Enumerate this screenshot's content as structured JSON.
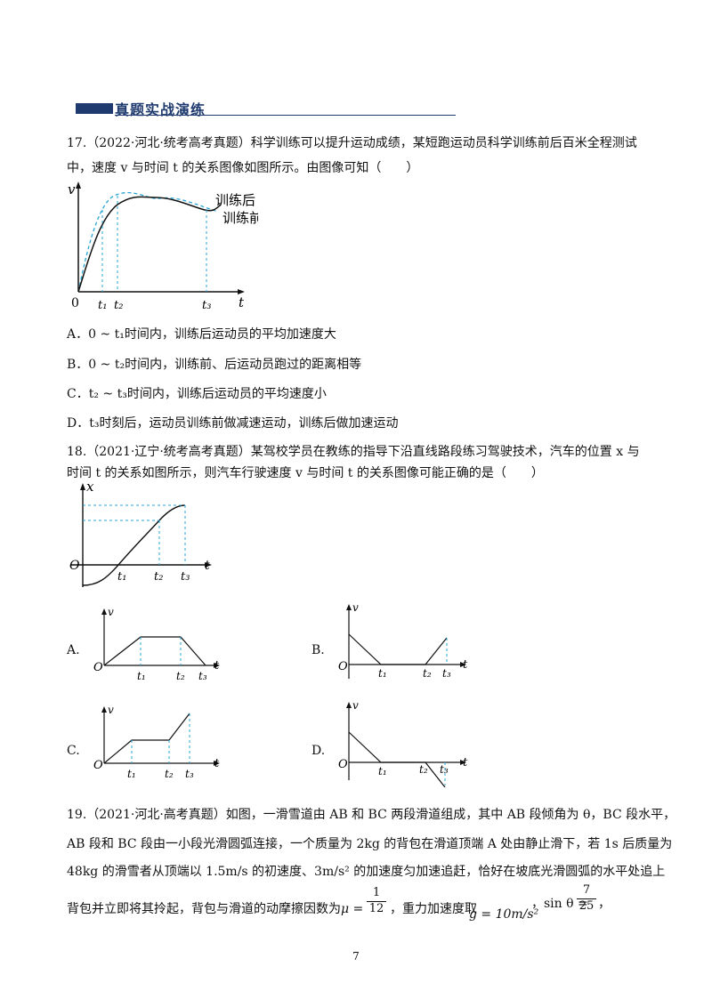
{
  "section": {
    "title": "真题实战演练"
  },
  "q17": {
    "line1": "17.（2022·河北·统考高考真题）科学训练可以提升运动成绩，某短跑运动员科学训练前后百米全程测试",
    "line2": "中，速度 v 与时间 t 的关系图像如图所示。由图像可知（　　）",
    "graph": {
      "y_axis": "v",
      "x_axis": "t",
      "origin": "0",
      "t1": "t₁",
      "t2": "t₂",
      "t3": "t₃",
      "curve_after": "训练后",
      "curve_before": "训练前"
    },
    "options": [
      "A．0 ~ t₁时间内，训练后运动员的平均加速度大",
      "B．0 ~ t₂时间内，训练前、后运动员跑过的距离相等",
      "C．t₂ ~ t₃时间内，训练后运动员的平均速度小",
      "D．t₃时刻后，运动员训练前做减速运动，训练后做加速运动"
    ]
  },
  "q18": {
    "line1": "18.（2021·辽宁·统考高考真题）某驾校学员在教练的指导下沿直线路段练习驾驶技术，汽车的位置 x 与",
    "line2": "时间 t 的关系如图所示，则汽车行驶速度 v 与时间 t 的关系图像可能正确的是（　　）",
    "graph": {
      "y_axis": "x",
      "x_axis": "t",
      "origin": "O",
      "t1": "t₁",
      "t2": "t₂",
      "t3": "t₃"
    },
    "choices": {
      "A": {
        "label": "A.",
        "v": "v",
        "o": "O",
        "t": "t",
        "t1": "t₁",
        "t2": "t₂",
        "t3": "t₃"
      },
      "B": {
        "label": "B.",
        "v": "v",
        "o": "O",
        "t": "t",
        "t1": "t₁",
        "t2": "t₂",
        "t3": "t₃"
      },
      "C": {
        "label": "C.",
        "v": "v",
        "o": "O",
        "t": "t",
        "t1": "t₁",
        "t2": "t₂",
        "t3": "t₃"
      },
      "D": {
        "label": "D.",
        "v": "v",
        "o": "O",
        "t": "t",
        "t1": "t₁",
        "t2": "t₂",
        "t3": "t₃"
      }
    }
  },
  "q19": {
    "line1": "19.（2021·河北·高考真题）如图，一滑雪道由 AB 和 BC 两段滑道组成，其中 AB 段倾角为 θ，BC 段水平，",
    "line2": "AB 段和 BC 段由一小段光滑圆弧连接，一个质量为 2kg 的背包在滑道顶端 A 处由静止滑下，若 1s 后质量为",
    "line3": "48kg 的滑雪者从顶端以 1.5m/s 的初速度、3m/s² 的加速度匀加速追赶，恰好在坡底光滑圆弧的水平处追上",
    "line4_a": "背包并立即将其拎起，背包与滑道的动摩擦因数为",
    "mu": "μ =",
    "mu_num": "1",
    "mu_den": "12",
    "line4_b": "，重力加速度取",
    "g": "g = 10m/s²",
    "sin": "，sin θ =",
    "sin_num": "7",
    "sin_den": "25",
    "line4_end": "，"
  },
  "page_number": "7",
  "colors": {
    "banner": "#1f3a6e",
    "dashed": "#2aa6d6",
    "ink": "#111111"
  }
}
